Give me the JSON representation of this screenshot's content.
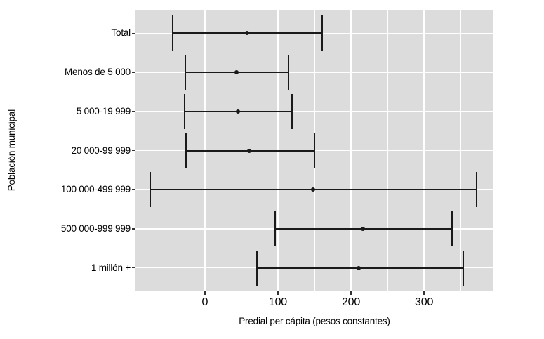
{
  "chart_data": {
    "type": "errorbar",
    "orientation": "horizontal",
    "title": "",
    "xlabel": "Predial per cápita (pesos constantes)",
    "ylabel": "Población municipal",
    "xlim": [
      -95,
      395
    ],
    "xticks": [
      0,
      100,
      200,
      300
    ],
    "minor_gridlines": [
      -50,
      50,
      150,
      250,
      350
    ],
    "grid": true,
    "legend": "none",
    "categories": [
      "Total",
      "Menos de 5 000",
      "5 000-19 999",
      "20 000-99 999",
      "100 000-499 999",
      "500 000-999 999",
      "1 millón +"
    ],
    "series": [
      {
        "name": "lower",
        "values": [
          -44,
          -27,
          -28,
          -26,
          -75,
          96,
          71
        ]
      },
      {
        "name": "estimate",
        "values": [
          58,
          43,
          45,
          61,
          148,
          216,
          211
        ]
      },
      {
        "name": "upper",
        "values": [
          161,
          114,
          119,
          150,
          372,
          338,
          354
        ]
      }
    ],
    "colors": {
      "panel_bg": "#dcdcdc",
      "gridline": "#ffffff",
      "marker": "#1a1a1a",
      "tick": "#333333",
      "text": "#000000"
    }
  }
}
